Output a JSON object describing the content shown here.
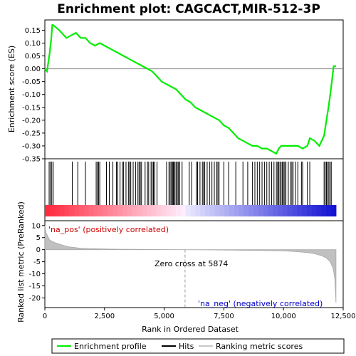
{
  "chart_data": {
    "type": "line",
    "title": "Enrichment plot: CAGCACT,MIR-512-3P",
    "panels": {
      "es": {
        "ylabel": "Enrichment score (ES)",
        "ylim": [
          -0.35,
          0.19
        ],
        "yticks": [
          "0.15",
          "0.10",
          "0.05",
          "0.00",
          "-0.05",
          "-0.10",
          "-0.15",
          "-0.20",
          "-0.25",
          "-0.30",
          "-0.35"
        ],
        "ytick_values": [
          0.15,
          0.1,
          0.05,
          0.0,
          -0.05,
          -0.1,
          -0.15,
          -0.2,
          -0.25,
          -0.3,
          -0.35
        ],
        "color": "#00ee00",
        "series": [
          {
            "x": [
              0,
              90,
              200,
              270,
              310,
              350,
              600,
              900,
              1100,
              1300,
              1500,
              1700,
              1900,
              2100,
              2300,
              2500,
              2700,
              2900,
              3100,
              3300,
              3500,
              3700,
              3900,
              4100,
              4300,
              4500,
              4700,
              4900,
              5100,
              5300,
              5500,
              5700,
              5900,
              6100,
              6300,
              6500,
              6700,
              6900,
              7100,
              7300,
              7500,
              7700,
              7900,
              8100,
              8300,
              8500,
              8700,
              8900,
              9100,
              9300,
              9500,
              9700,
              9800,
              9900,
              10000,
              10200,
              10400,
              10600,
              10800,
              11000,
              11100,
              11300,
              11500,
              11700,
              11800,
              11900,
              12000,
              12100,
              12200
            ],
            "y": [
              0.0,
              -0.01,
              0.06,
              0.12,
              0.17,
              0.17,
              0.15,
              0.12,
              0.13,
              0.14,
              0.12,
              0.12,
              0.1,
              0.09,
              0.1,
              0.09,
              0.08,
              0.07,
              0.06,
              0.05,
              0.04,
              0.03,
              0.02,
              0.01,
              0.0,
              -0.01,
              -0.03,
              -0.05,
              -0.06,
              -0.07,
              -0.08,
              -0.1,
              -0.12,
              -0.13,
              -0.15,
              -0.16,
              -0.17,
              -0.18,
              -0.19,
              -0.2,
              -0.22,
              -0.23,
              -0.25,
              -0.27,
              -0.28,
              -0.29,
              -0.3,
              -0.3,
              -0.31,
              -0.31,
              -0.32,
              -0.33,
              -0.31,
              -0.3,
              -0.3,
              -0.3,
              -0.3,
              -0.3,
              -0.31,
              -0.3,
              -0.27,
              -0.28,
              -0.3,
              -0.26,
              -0.2,
              -0.14,
              -0.07,
              0.01,
              0.01
            ]
          }
        ]
      },
      "hits": {
        "positions": [
          180,
          230,
          290,
          350,
          1150,
          1380,
          1700,
          2150,
          2200,
          2250,
          2300,
          2580,
          2700,
          2850,
          3000,
          3050,
          3150,
          3250,
          3300,
          3400,
          3500,
          3550,
          3600,
          3700,
          3800,
          3900,
          3950,
          4000,
          4050,
          4200,
          4300,
          4350,
          4450,
          4500,
          4550,
          4600,
          4700,
          5100,
          5200,
          5250,
          5300,
          5350,
          5380,
          5400,
          5450,
          5500,
          5550,
          5600,
          5650,
          5750,
          6050,
          6150,
          6350,
          6400,
          6500,
          6600,
          6650,
          6700,
          6800,
          6900,
          7000,
          7100,
          7200,
          7250,
          7300,
          7500,
          7700,
          8000,
          8300,
          8500,
          8700,
          8800,
          8900,
          9000,
          9100,
          9200,
          9300,
          9400,
          9500,
          9600,
          9700,
          9750,
          9800,
          9850,
          9900,
          9950,
          10000,
          10050,
          10100,
          10200,
          10300,
          10350,
          10400,
          10500,
          10600,
          10750,
          10800,
          11000,
          11100,
          11700,
          11750,
          11800,
          11850,
          11900,
          11950,
          12000
        ]
      },
      "rank_metric": {
        "ylabel": "Ranked list metric (PreRanked)",
        "ylim": [
          -24,
          12
        ],
        "yticks": [
          "10",
          "5",
          "0",
          "-5",
          "-10",
          "-15",
          "-20"
        ],
        "ytick_values": [
          10,
          5,
          0,
          -5,
          -10,
          -15,
          -20
        ],
        "x": [
          0,
          50,
          100,
          200,
          400,
          700,
          1000,
          1500,
          2000,
          3000,
          4000,
          5000,
          5874,
          7000,
          8000,
          9000,
          10000,
          10500,
          11000,
          11300,
          11600,
          11800,
          11950,
          12050,
          12100,
          12150,
          12180,
          12200
        ],
        "y": [
          10,
          7,
          6,
          4,
          3,
          2,
          1.2,
          0.6,
          0.4,
          0.2,
          0.1,
          0.05,
          0,
          -0.1,
          -0.2,
          -0.3,
          -0.5,
          -0.8,
          -1.2,
          -1.7,
          -2.5,
          -3.5,
          -5,
          -7,
          -9,
          -12,
          -18,
          -22
        ],
        "pos_label": "'na_pos' (positively correlated)",
        "neg_label": "'na_neg' (negatively correlated)",
        "zero_cross_label": "Zero cross at 5874",
        "zero_cross": 5874
      }
    },
    "xlabel": "Rank in Ordered Dataset",
    "xlim": [
      0,
      12500
    ],
    "xticks": [
      "0",
      "2,500",
      "5,000",
      "7,500",
      "10,000",
      "12,500"
    ],
    "xtick_values": [
      0,
      2500,
      5000,
      7500,
      10000,
      12500
    ],
    "legend": {
      "placement": "bottom",
      "items": [
        {
          "label": "Enrichment profile",
          "color": "#00ee00"
        },
        {
          "label": "Hits",
          "color": "#000000"
        },
        {
          "label": "Ranking metric scores",
          "color": "#c8c8c8"
        }
      ]
    }
  }
}
